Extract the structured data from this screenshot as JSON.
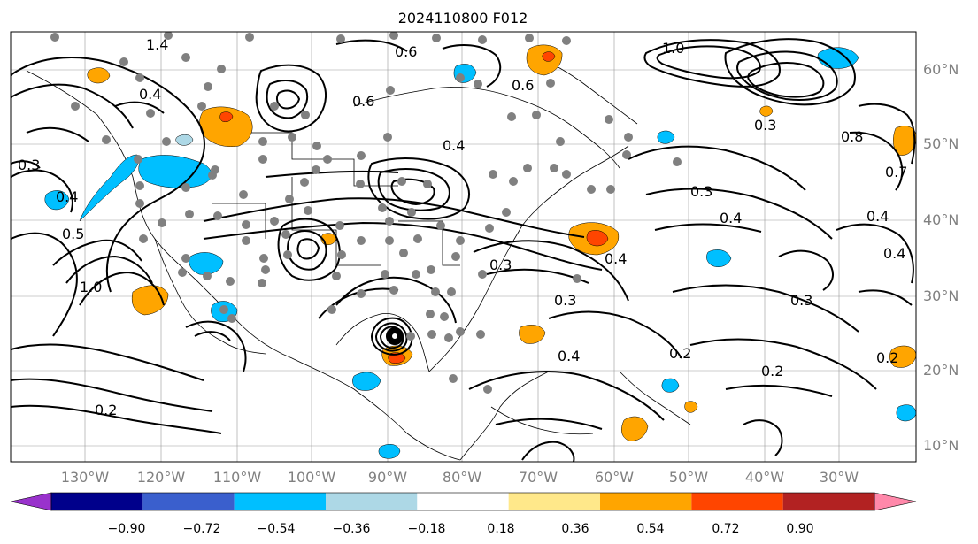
{
  "title": "2024110800 F012",
  "map": {
    "latitude_labels": [
      "60°N",
      "50°N",
      "40°N",
      "30°N",
      "20°N",
      "10°N"
    ],
    "longitude_labels": [
      "130°W",
      "120°W",
      "110°W",
      "100°W",
      "90°W",
      "80°W",
      "70°W",
      "60°W",
      "50°W",
      "40°W",
      "30°W"
    ],
    "contour_labels": [
      "0.6",
      "0.6",
      "0.4",
      "0.4",
      "0.3",
      "0.3",
      "0.3",
      "0.4",
      "0.4",
      "0.4",
      "0.3",
      "0.2",
      "0.2",
      "0.2",
      "0.2",
      "0.4",
      "0.3",
      "1.4",
      "0.4",
      "1.0",
      "0.5",
      "0.6",
      "0.7",
      "0.8",
      "1.0",
      "0.3",
      "0.4"
    ],
    "colors": {
      "contour": "#000000",
      "orange": "#ffa500",
      "red": "#ff4500",
      "cyan": "#00bfff",
      "light_blue": "#add8e6",
      "grid": "#808080",
      "land_dots": "#808080"
    }
  },
  "colorbar": {
    "ticks": [
      "−0.90",
      "−0.72",
      "−0.54",
      "−0.36",
      "−0.18",
      "0.18",
      "0.36",
      "0.54",
      "0.72",
      "0.90"
    ],
    "segment_colors": [
      "#9932cc",
      "#00008b",
      "#3a5fcd",
      "#00bfff",
      "#add8e6",
      "#ffffff",
      "#ffe88a",
      "#ffa500",
      "#ff4500",
      "#b22222",
      "#ff88aa"
    ]
  }
}
